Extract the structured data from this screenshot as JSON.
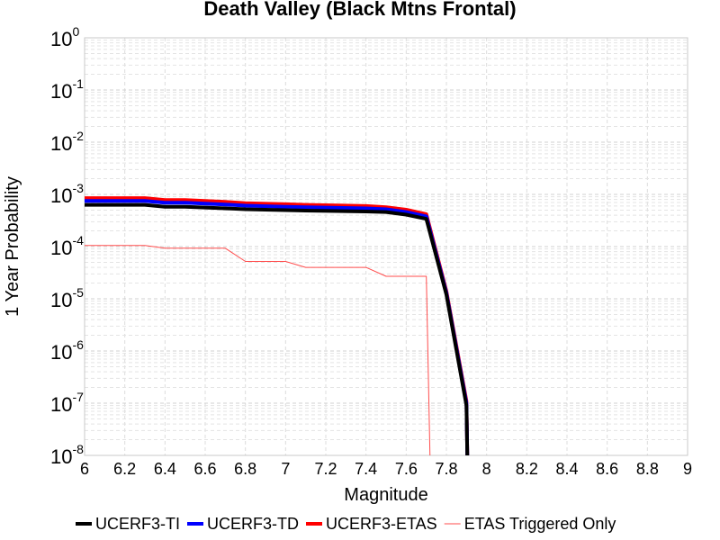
{
  "chart_data": {
    "type": "line",
    "title": "Death Valley (Black Mtns Frontal)",
    "xlabel": "Magnitude",
    "ylabel": "1 Year Probability",
    "xlim": [
      6,
      9
    ],
    "ylim": [
      1e-08,
      1
    ],
    "y_scale": "log",
    "grid": true,
    "legend_position": "bottom",
    "x_ticks": [
      6,
      6.2,
      6.4,
      6.6,
      6.8,
      7,
      7.2,
      7.4,
      7.6,
      7.8,
      8,
      8.2,
      8.4,
      8.6,
      8.8,
      9
    ],
    "x_tick_labels": [
      "6",
      "6.2",
      "6.4",
      "6.6",
      "6.8",
      "7",
      "7.2",
      "7.4",
      "7.6",
      "7.8",
      "8",
      "8.2",
      "8.4",
      "8.6",
      "8.8",
      "9"
    ],
    "y_ticks": [
      {
        "base": "10",
        "exp": "0",
        "value": 1
      },
      {
        "base": "10",
        "exp": "-1",
        "value": 0.1
      },
      {
        "base": "10",
        "exp": "-2",
        "value": 0.01
      },
      {
        "base": "10",
        "exp": "-3",
        "value": 0.001
      },
      {
        "base": "10",
        "exp": "-4",
        "value": 0.0001
      },
      {
        "base": "10",
        "exp": "-5",
        "value": 1e-05
      },
      {
        "base": "10",
        "exp": "-6",
        "value": 1e-06
      },
      {
        "base": "10",
        "exp": "-7",
        "value": 1e-07
      },
      {
        "base": "10",
        "exp": "-8",
        "value": 1e-08
      }
    ],
    "series": [
      {
        "name": "UCERF3-TI",
        "color": "#000000",
        "width": 4,
        "points": [
          [
            6.0,
            0.00063
          ],
          [
            6.3,
            0.00063
          ],
          [
            6.4,
            0.00058
          ],
          [
            6.5,
            0.00058
          ],
          [
            6.7,
            0.00054
          ],
          [
            6.8,
            0.00052
          ],
          [
            7.0,
            0.0005
          ],
          [
            7.1,
            0.00049
          ],
          [
            7.4,
            0.00047
          ],
          [
            7.5,
            0.00046
          ],
          [
            7.6,
            0.00041
          ],
          [
            7.7,
            0.00034
          ],
          [
            7.8,
            1.2e-05
          ],
          [
            7.9,
            9e-08
          ],
          [
            7.905,
            5e-09
          ]
        ]
      },
      {
        "name": "UCERF3-TD",
        "color": "#0000ff",
        "width": 4,
        "points": [
          [
            6.0,
            0.00075
          ],
          [
            6.3,
            0.00075
          ],
          [
            6.4,
            0.00069
          ],
          [
            6.5,
            0.00069
          ],
          [
            6.7,
            0.00064
          ],
          [
            6.8,
            0.00061
          ],
          [
            7.0,
            0.00058
          ],
          [
            7.1,
            0.00057
          ],
          [
            7.4,
            0.00054
          ],
          [
            7.5,
            0.00052
          ],
          [
            7.6,
            0.00046
          ],
          [
            7.7,
            0.00038
          ],
          [
            7.8,
            1.3e-05
          ],
          [
            7.9,
            1e-07
          ],
          [
            7.905,
            5e-09
          ]
        ]
      },
      {
        "name": "UCERF3-ETAS",
        "color": "#ff0000",
        "width": 4,
        "points": [
          [
            6.0,
            0.00085
          ],
          [
            6.3,
            0.00085
          ],
          [
            6.4,
            0.00078
          ],
          [
            6.5,
            0.00078
          ],
          [
            6.7,
            0.00072
          ],
          [
            6.8,
            0.00068
          ],
          [
            7.0,
            0.00065
          ],
          [
            7.1,
            0.00063
          ],
          [
            7.4,
            0.0006
          ],
          [
            7.5,
            0.00057
          ],
          [
            7.6,
            0.00051
          ],
          [
            7.7,
            0.00042
          ],
          [
            7.8,
            1.4e-05
          ],
          [
            7.9,
            1.1e-07
          ],
          [
            7.905,
            5e-09
          ]
        ]
      },
      {
        "name": "ETAS Triggered Only",
        "color": "#ff4d4d",
        "width": 1,
        "points": [
          [
            6.0,
            0.000105
          ],
          [
            6.3,
            0.000105
          ],
          [
            6.4,
            9.3e-05
          ],
          [
            6.7,
            9.3e-05
          ],
          [
            6.8,
            5.2e-05
          ],
          [
            7.0,
            5.2e-05
          ],
          [
            7.1,
            4e-05
          ],
          [
            7.4,
            4e-05
          ],
          [
            7.5,
            2.7e-05
          ],
          [
            7.7,
            2.7e-05
          ],
          [
            7.72,
            5e-09
          ]
        ]
      }
    ]
  }
}
